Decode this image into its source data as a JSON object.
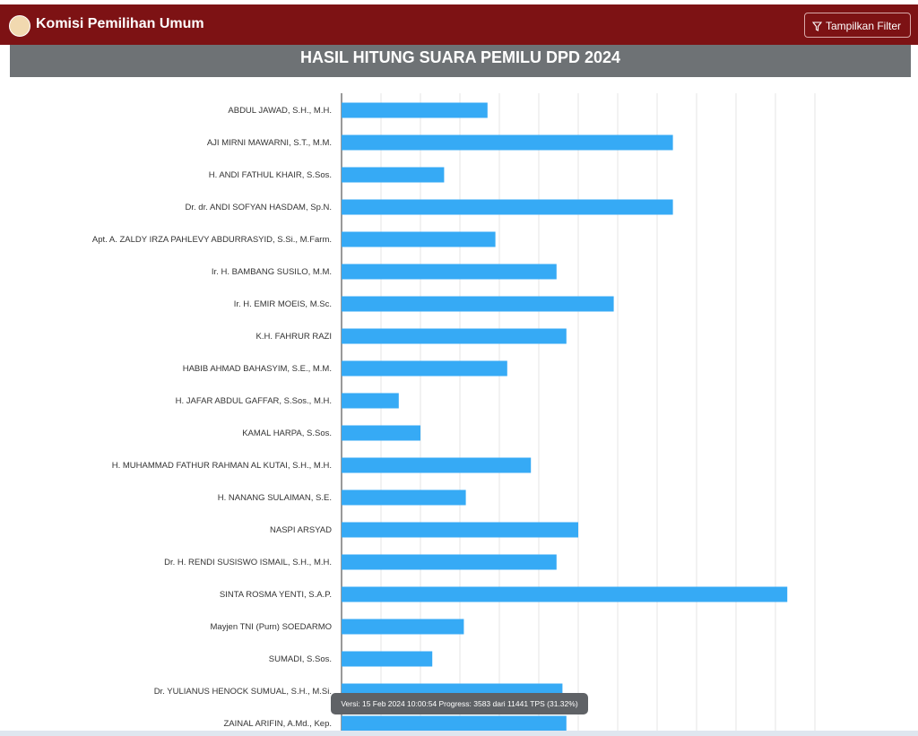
{
  "header": {
    "brand": "Komisi Pemilihan Umum",
    "filter_button": "Tampilkan Filter"
  },
  "chart_data": {
    "type": "bar",
    "orientation": "horizontal",
    "title": "HASIL HITUNG SUARA PEMILU DPD 2024",
    "categories": [
      "ABDUL JAWAD, S.H., M.H.",
      "AJI MIRNI MAWARNI, S.T., M.M.",
      "H. ANDI FATHUL KHAIR, S.Sos.",
      "Dr. dr. ANDI SOFYAN HASDAM, Sp.N.",
      "Apt. A. ZALDY IRZA PAHLEVY ABDURRASYID, S.Si., M.Farm.",
      "Ir. H. BAMBANG SUSILO, M.M.",
      "Ir. H. EMIR MOEIS, M.Sc.",
      "K.H. FAHRUR RAZI",
      "HABIB AHMAD BAHASYIM, S.E., M.M.",
      "H. JAFAR ABDUL GAFFAR, S.Sos., M.H.",
      "KAMAL HARPA, S.Sos.",
      "H. MUHAMMAD FATHUR RAHMAN AL KUTAI, S.H., M.H.",
      "H. NANANG SULAIMAN, S.E.",
      "NASPI ARSYAD",
      "Dr. H. RENDI SUSISWO ISMAIL, S.H., M.H.",
      "SINTA ROSMA YENTI, S.A.P.",
      "Mayjen TNI (Purn) SOEDARMO",
      "SUMADI, S.Sos.",
      "Dr. YULIANUS HENOCK SUMUAL, S.H., M.Si.",
      "ZAINAL ARIFIN, A.Md., Kep."
    ],
    "values": [
      3.7,
      8.4,
      2.6,
      8.4,
      3.9,
      5.45,
      6.9,
      5.7,
      4.2,
      1.45,
      2.0,
      4.8,
      3.15,
      6.0,
      5.45,
      11.3,
      3.1,
      2.3,
      5.6,
      5.7
    ],
    "color": "#36aaf5",
    "xlim": [
      0,
      12
    ],
    "grid": true
  },
  "status": {
    "tooltip": "Versi: 15 Feb 2024 10:00:54 Progress: 3583 dari 11441 TPS (31.32%)"
  }
}
